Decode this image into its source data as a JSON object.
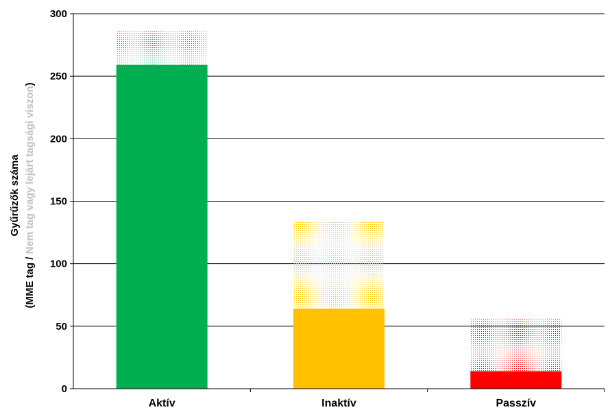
{
  "chart_data": {
    "type": "bar",
    "stacked": true,
    "categories": [
      "Aktív",
      "Inaktív",
      "Passzív"
    ],
    "series": [
      {
        "values": [
          259,
          64,
          14
        ],
        "colors": [
          "#00b050",
          "#ffc000",
          "#ff0000"
        ],
        "fill": "solid"
      },
      {
        "values": [
          28,
          70,
          43
        ],
        "colors": [
          "#00b050",
          "#ffc000",
          "#ff0000"
        ],
        "fill": "dotted"
      }
    ],
    "ylabel_line1": "Gyűrűzők száma",
    "ylabel_line2_part1": "(MME tag / ",
    "ylabel_line2_part2": "Nem tag vagy lejárt tagsági viszon",
    "ylabel_line2_part3": ")",
    "ylabel_color_main": "#000000",
    "ylabel_color_secondary": "#c0c0c0",
    "ylim": [
      0,
      300
    ],
    "yticks": [
      0,
      50,
      100,
      150,
      200,
      250,
      300
    ],
    "grid": true,
    "gridline_color": "#000000"
  }
}
